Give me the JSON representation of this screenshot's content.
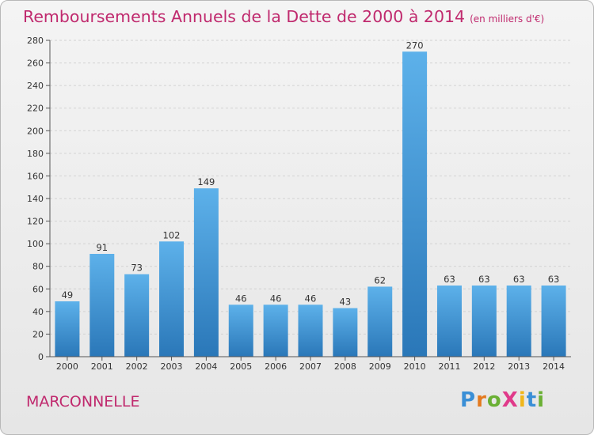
{
  "header": {
    "title": "Remboursements Annuels de la Dette de 2000 à 2014",
    "unit": "(en milliers d'€)"
  },
  "footer": {
    "town": "MARCONNELLE",
    "logo": "ProXiti"
  },
  "colors": {
    "title": "#c02a6e",
    "bar_top": "#5db1ea",
    "bar_bottom": "#2a77b8",
    "logo_p": "#3a8fd6",
    "logo_r": "#e47a1f",
    "logo_o": "#6ab034",
    "logo_x": "#e03a8a",
    "logo_i": "#f0b61a",
    "logo_t": "#3a8fd6",
    "logo_i2": "#6ab034"
  },
  "chart_data": {
    "type": "bar",
    "title": "Remboursements Annuels de la Dette de 2000 à 2014",
    "subtitle": "(en milliers d'€)",
    "xlabel": "",
    "ylabel": "",
    "categories": [
      "2000",
      "2001",
      "2002",
      "2003",
      "2004",
      "2005",
      "2006",
      "2007",
      "2008",
      "2009",
      "2010",
      "2011",
      "2012",
      "2013",
      "2014"
    ],
    "values": [
      49,
      91,
      73,
      102,
      149,
      46,
      46,
      46,
      43,
      62,
      270,
      63,
      63,
      63,
      63
    ],
    "ylim": [
      0,
      280
    ],
    "yticks": [
      0,
      20,
      40,
      60,
      80,
      100,
      120,
      140,
      160,
      180,
      200,
      220,
      240,
      260,
      280
    ],
    "grid": true
  }
}
